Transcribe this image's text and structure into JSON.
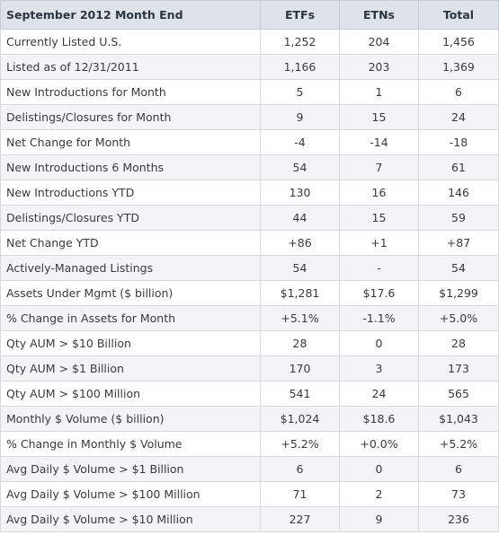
{
  "table": {
    "headers": [
      "September 2012 Month End",
      "ETFs",
      "ETNs",
      "Total"
    ],
    "rows": [
      [
        "Currently Listed U.S.",
        "1,252",
        "204",
        "1,456"
      ],
      [
        "Listed as of 12/31/2011",
        "1,166",
        "203",
        "1,369"
      ],
      [
        "New Introductions for Month",
        "5",
        "1",
        "6"
      ],
      [
        "Delistings/Closures for Month",
        "9",
        "15",
        "24"
      ],
      [
        "Net Change for Month",
        "-4",
        "-14",
        "-18"
      ],
      [
        "New Introductions 6 Months",
        "54",
        "7",
        "61"
      ],
      [
        "New Introductions YTD",
        "130",
        "16",
        "146"
      ],
      [
        "Delistings/Closures YTD",
        "44",
        "15",
        "59"
      ],
      [
        "Net Change YTD",
        "+86",
        "+1",
        "+87"
      ],
      [
        "Actively-Managed Listings",
        "54",
        "-",
        "54"
      ],
      [
        "Assets Under Mgmt ($ billion)",
        "$1,281",
        "$17.6",
        "$1,299"
      ],
      [
        "% Change in Assets for Month",
        "+5.1%",
        "-1.1%",
        "+5.0%"
      ],
      [
        "Qty AUM > $10 Billion",
        "28",
        "0",
        "28"
      ],
      [
        "Qty AUM > $1 Billion",
        "170",
        "3",
        "173"
      ],
      [
        "Qty AUM > $100 Million",
        "541",
        "24",
        "565"
      ],
      [
        "Monthly $ Volume ($ billion)",
        "$1,024",
        "$18.6",
        "$1,043"
      ],
      [
        "% Change in Monthly $ Volume",
        "+5.2%",
        "+0.0%",
        "+5.2%"
      ],
      [
        "Avg Daily $ Volume > $1 Billion",
        "6",
        "0",
        "6"
      ],
      [
        "Avg Daily $ Volume > $100 Million",
        "71",
        "2",
        "73"
      ],
      [
        "Avg Daily $ Volume > $10 Million",
        "227",
        "9",
        "236"
      ]
    ]
  },
  "colors": {
    "header_bg": "#dde3e9",
    "alt_row_bg": "#f2f4f6",
    "border": "#d4d9de"
  }
}
